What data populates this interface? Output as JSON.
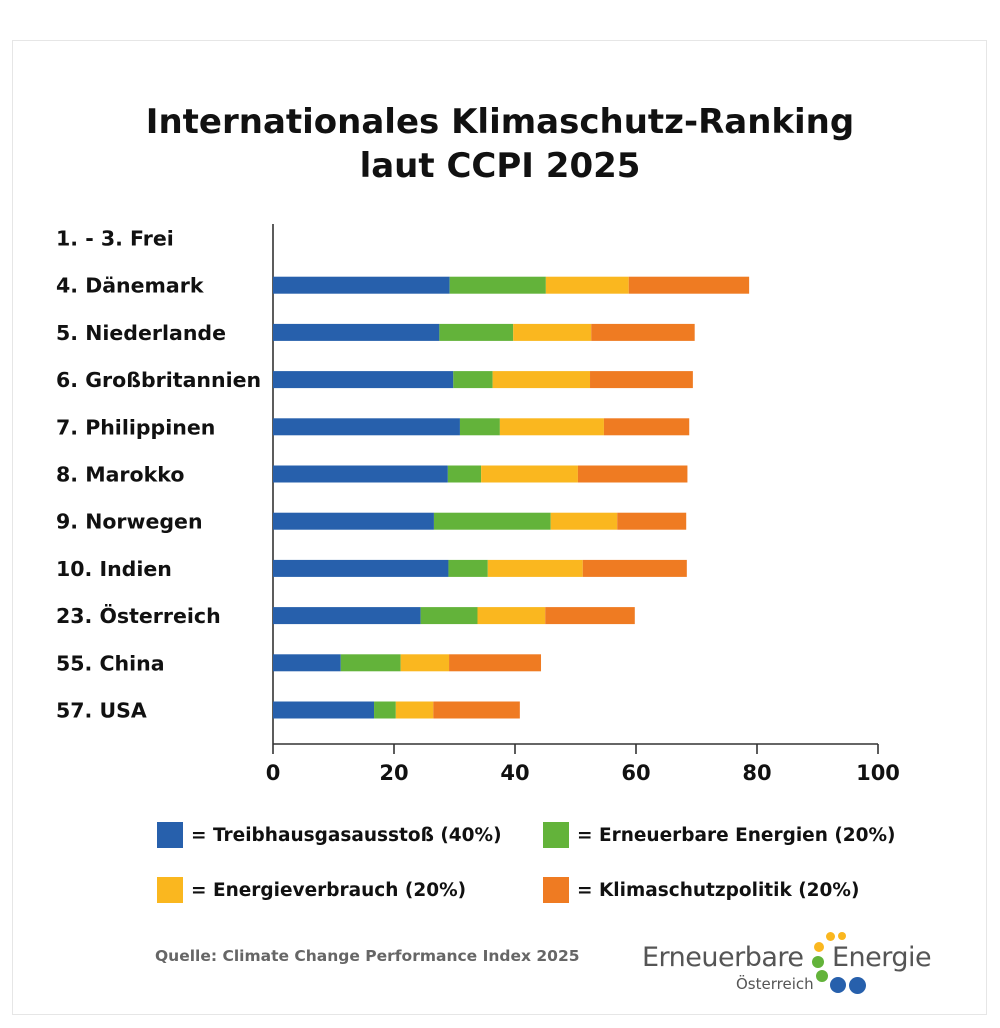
{
  "title": {
    "line1": "Internationales Klimaschutz-Ranking",
    "line2": "laut CCPI 2025"
  },
  "colors": {
    "treibhaus": "#2760ac",
    "erneuerbar": "#63b33a",
    "energie": "#fab71f",
    "politik": "#ef7b22",
    "axis": "#333333",
    "logo_text": "#555555"
  },
  "chart_data": {
    "type": "bar",
    "orientation": "horizontal",
    "stacked": true,
    "categories": [
      "1. - 3. Frei",
      "4. Dänemark",
      "5. Niederlande",
      "6. Großbritannien",
      "7. Philippinen",
      "8. Marokko",
      "9. Norwegen",
      "10. Indien",
      "23. Österreich",
      "55. China",
      "57. USA"
    ],
    "series": [
      {
        "name": "Treibhausgasausstoß (40%)",
        "color_key": "treibhaus",
        "values": [
          null,
          29.2,
          27.5,
          29.8,
          30.9,
          28.9,
          26.6,
          29.0,
          24.4,
          11.2,
          16.7
        ]
      },
      {
        "name": "Erneuerbare Energien (20%)",
        "color_key": "erneuerbar",
        "values": [
          null,
          15.9,
          12.2,
          6.5,
          6.6,
          5.5,
          19.3,
          6.5,
          9.4,
          9.9,
          3.6
        ]
      },
      {
        "name": "Energieverbrauch (20%)",
        "color_key": "energie",
        "values": [
          null,
          13.7,
          12.9,
          16.1,
          17.2,
          16.0,
          11.0,
          15.7,
          11.2,
          8.0,
          6.2
        ]
      },
      {
        "name": "Klimaschutzpolitik (20%)",
        "color_key": "politik",
        "values": [
          null,
          19.9,
          17.1,
          17.0,
          14.1,
          18.1,
          11.4,
          17.2,
          14.8,
          15.2,
          14.3
        ]
      }
    ],
    "xlim": [
      0,
      100
    ],
    "xticks": [
      "0",
      "20",
      "40",
      "60",
      "80",
      "100"
    ],
    "xlabel": "",
    "ylabel": "",
    "grid": false,
    "legend_position": "bottom"
  },
  "legend": [
    {
      "label": "= Treibhausgasausstoß (40%)",
      "color_key": "treibhaus"
    },
    {
      "label": "= Erneuerbare Energien (20%)",
      "color_key": "erneuerbar"
    },
    {
      "label": "= Energieverbrauch (20%)",
      "color_key": "energie"
    },
    {
      "label": "= Klimaschutzpolitik (20%)",
      "color_key": "politik"
    }
  ],
  "source": "Quelle: Climate Change Performance Index 2025",
  "logo": {
    "word1": "Erneuerbare",
    "word2": "Energie",
    "sub": "Österreich"
  }
}
